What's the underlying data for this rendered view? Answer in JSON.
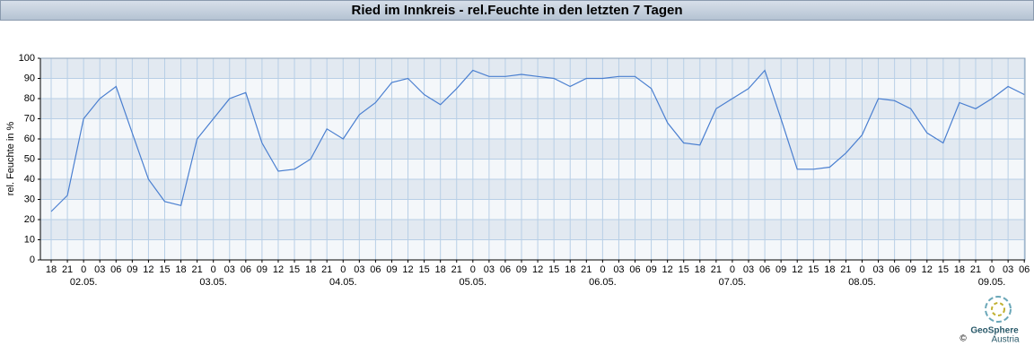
{
  "chart_data": {
    "type": "line",
    "title": "Ried im Innkreis - rel.Feuchte in den letzten 7 Tagen",
    "y_label": "rel. Feuchte in %",
    "categories": [
      "18",
      "21",
      "0",
      "03",
      "06",
      "09",
      "12",
      "15",
      "18",
      "21",
      "0",
      "03",
      "06",
      "09",
      "12",
      "15",
      "18",
      "21",
      "0",
      "03",
      "06",
      "09",
      "12",
      "15",
      "18",
      "21",
      "0",
      "03",
      "06",
      "09",
      "12",
      "15",
      "18",
      "21",
      "0",
      "03",
      "06",
      "09",
      "12",
      "15",
      "18",
      "21",
      "0",
      "03",
      "06",
      "09",
      "12",
      "15",
      "18",
      "21",
      "0",
      "03",
      "06",
      "09",
      "12",
      "15",
      "18",
      "21",
      "0",
      "03",
      "06"
    ],
    "date_labels": [
      null,
      null,
      "02.05.",
      null,
      null,
      null,
      null,
      null,
      null,
      null,
      "03.05.",
      null,
      null,
      null,
      null,
      null,
      null,
      null,
      "04.05.",
      null,
      null,
      null,
      null,
      null,
      null,
      null,
      "05.05.",
      null,
      null,
      null,
      null,
      null,
      null,
      null,
      "06.05.",
      null,
      null,
      null,
      null,
      null,
      null,
      null,
      "07.05.",
      null,
      null,
      null,
      null,
      null,
      null,
      null,
      "08.05.",
      null,
      null,
      null,
      null,
      null,
      null,
      null,
      "09.05.",
      null,
      null
    ],
    "series": [
      {
        "name": "rel.Feuchte",
        "color": "#4a7fd0",
        "values": [
          24,
          32,
          70,
          80,
          86,
          63,
          40,
          29,
          27,
          60,
          70,
          80,
          83,
          58,
          44,
          45,
          50,
          65,
          60,
          72,
          78,
          88,
          90,
          82,
          77,
          85,
          94,
          91,
          91,
          92,
          91,
          90,
          86,
          90,
          90,
          91,
          91,
          85,
          68,
          58,
          57,
          75,
          80,
          85,
          94,
          70,
          45,
          45,
          46,
          53,
          62,
          80,
          79,
          75,
          63,
          58,
          78,
          75,
          80,
          86,
          82
        ]
      }
    ],
    "ylim": [
      0,
      100
    ],
    "yticks": [
      0,
      10,
      20,
      30,
      40,
      50,
      60,
      70,
      80,
      90,
      100
    ],
    "grid": true,
    "logo": {
      "name": "GeoSphere",
      "sub": "Austria",
      "copyright": "©"
    }
  }
}
